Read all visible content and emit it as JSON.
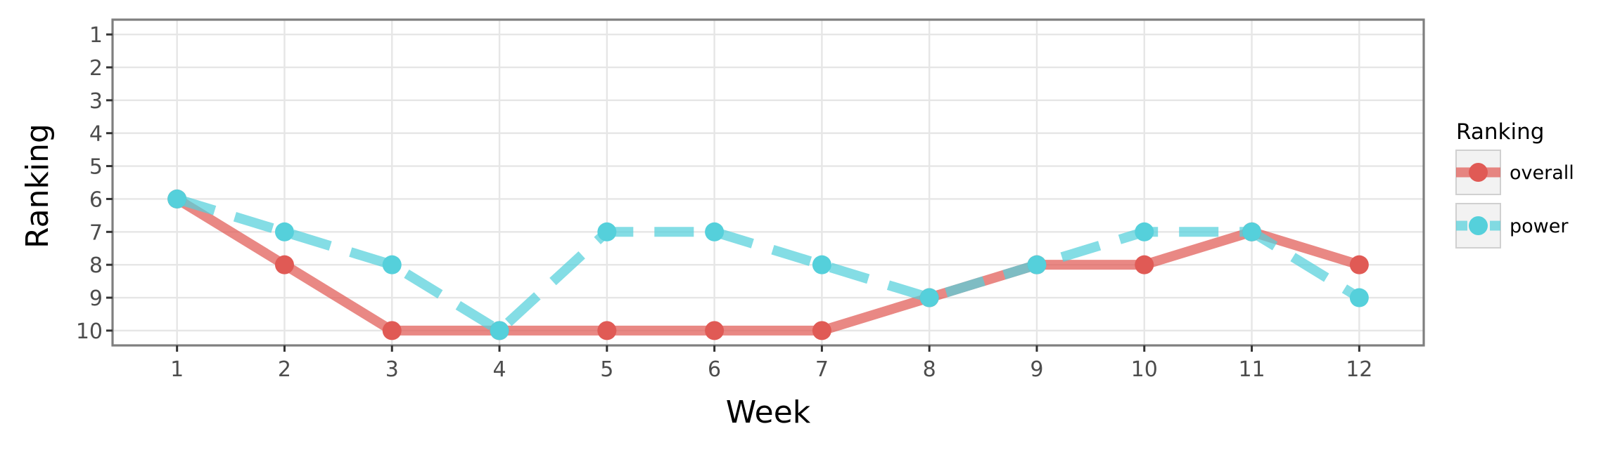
{
  "chart_data": {
    "type": "line",
    "xlabel": "Week",
    "ylabel": "Ranking",
    "x": [
      1,
      2,
      3,
      4,
      5,
      6,
      7,
      8,
      9,
      10,
      11,
      12
    ],
    "xlim": [
      0.4,
      12.6
    ],
    "ylim": [
      0.55,
      10.45
    ],
    "y_reversed": true,
    "x_ticks": [
      "1",
      "2",
      "3",
      "4",
      "5",
      "6",
      "7",
      "8",
      "9",
      "10",
      "11",
      "12"
    ],
    "y_ticks": [
      "1",
      "2",
      "3",
      "4",
      "5",
      "6",
      "7",
      "8",
      "9",
      "10"
    ],
    "grid": true,
    "legend": {
      "title": "Ranking",
      "position": "right"
    },
    "series": [
      {
        "name": "overall",
        "values": [
          6,
          8,
          10,
          10,
          10,
          10,
          10,
          9,
          8,
          8,
          7,
          8
        ],
        "color": "#e05a55",
        "line_style": "solid"
      },
      {
        "name": "power",
        "values": [
          6,
          7,
          8,
          10,
          7,
          7,
          8,
          9,
          8,
          7,
          7,
          9
        ],
        "color": "#55d0db",
        "line_style": "dashed"
      }
    ]
  }
}
